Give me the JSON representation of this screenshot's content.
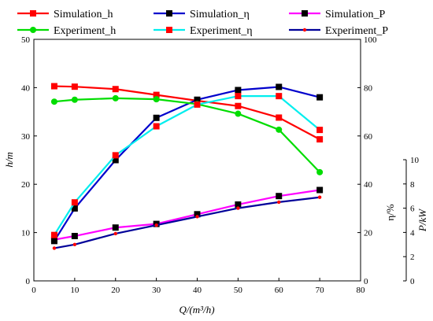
{
  "chart_data": {
    "type": "line",
    "xlabel": "Q/(m³/h)",
    "xlim": [
      0,
      80
    ],
    "xticks": [
      0,
      10,
      20,
      30,
      40,
      50,
      60,
      70,
      80
    ],
    "axes": {
      "h": {
        "label": "h/m",
        "lim": [
          0,
          50
        ],
        "ticks": [
          0,
          10,
          20,
          30,
          40,
          50
        ]
      },
      "eta": {
        "label": "η/%",
        "lim": [
          0,
          100
        ],
        "ticks": [
          0,
          20,
          40,
          60,
          80,
          100
        ]
      },
      "P": {
        "label": "P/kW",
        "lim": [
          0,
          10
        ],
        "ticks": [
          0,
          2,
          4,
          6,
          8,
          10
        ]
      }
    },
    "grid": false,
    "legend_position": "top",
    "series": [
      {
        "name": "Simulation_h",
        "axis": "h",
        "color": "#ff0000",
        "marker": "square",
        "marker_color": "#ff0000",
        "x": [
          5,
          10,
          20,
          30,
          40,
          50,
          60,
          70
        ],
        "y": [
          40.3,
          40.2,
          39.7,
          38.5,
          37.3,
          36.2,
          33.8,
          29.3
        ]
      },
      {
        "name": "Simulation_η",
        "axis": "eta",
        "color": "#0000cc",
        "marker": "square",
        "marker_color": "#000000",
        "x": [
          5,
          10,
          20,
          30,
          40,
          50,
          60,
          70
        ],
        "y": [
          16.5,
          30,
          50,
          67.5,
          75,
          79,
          80.3,
          76
        ]
      },
      {
        "name": "Simulation_P",
        "axis": "P",
        "color": "#ff00ff",
        "marker": "square",
        "marker_color": "#000000",
        "x": [
          5,
          10,
          20,
          30,
          40,
          50,
          60,
          70
        ],
        "y": [
          3.4,
          3.7,
          4.4,
          4.7,
          5.5,
          6.3,
          7.0,
          7.5
        ]
      },
      {
        "name": "Experiment_h",
        "axis": "h",
        "color": "#00dd00",
        "marker": "circle",
        "marker_color": "#00dd00",
        "x": [
          5,
          10,
          20,
          30,
          40,
          50,
          60,
          70
        ],
        "y": [
          37.1,
          37.5,
          37.8,
          37.6,
          36.6,
          34.6,
          31.3,
          22.5
        ]
      },
      {
        "name": "Experiment_η",
        "axis": "eta",
        "color": "#00eeee",
        "marker": "square",
        "marker_color": "#ff0000",
        "x": [
          5,
          10,
          20,
          30,
          40,
          50,
          60,
          70
        ],
        "y": [
          19,
          32.5,
          52,
          64,
          73,
          76.5,
          76.5,
          62.5
        ]
      },
      {
        "name": "Experiment_P",
        "axis": "P",
        "color": "#000099",
        "marker": "dot",
        "marker_color": "#ff0000",
        "x": [
          5,
          10,
          20,
          30,
          40,
          50,
          60,
          70
        ],
        "y": [
          2.7,
          3.0,
          3.9,
          4.6,
          5.3,
          6.0,
          6.5,
          6.9
        ]
      }
    ]
  }
}
